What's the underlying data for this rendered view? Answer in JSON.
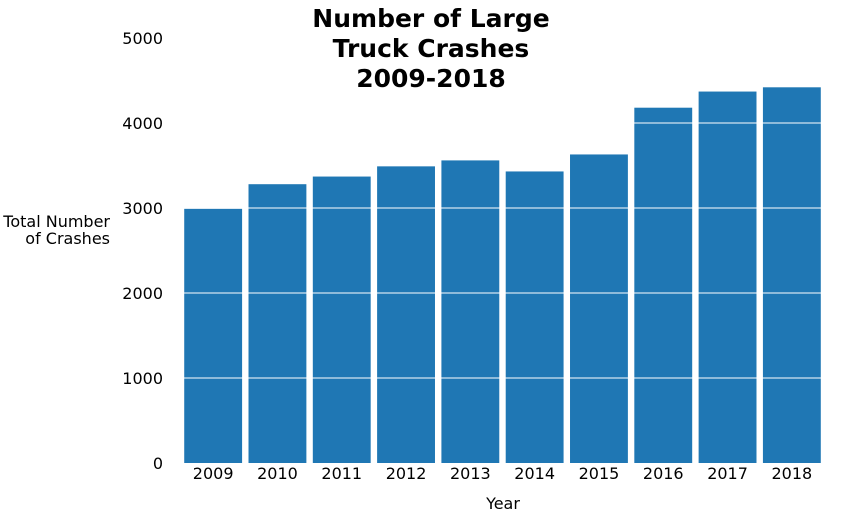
{
  "chart_data": {
    "type": "bar",
    "title_lines": [
      "Number of Large",
      "Truck Crashes",
      "2009-2018"
    ],
    "xlabel": "Year",
    "ylabel_lines": [
      "Total Number",
      "of Crashes"
    ],
    "categories": [
      "2009",
      "2010",
      "2011",
      "2012",
      "2013",
      "2014",
      "2015",
      "2016",
      "2017",
      "2018"
    ],
    "values": [
      2990,
      3280,
      3370,
      3490,
      3560,
      3430,
      3630,
      4180,
      4370,
      4420
    ],
    "ylim": [
      0,
      5000
    ],
    "yticks": [
      0,
      1000,
      2000,
      3000,
      4000,
      5000
    ],
    "ytick_labels": [
      "0",
      "1000",
      "2000",
      "3000",
      "4000",
      "5000"
    ],
    "grid": "horizontal-over-bars",
    "grid_color": "#ffffff",
    "bar_color": "#1f77b4",
    "legend": "none"
  }
}
